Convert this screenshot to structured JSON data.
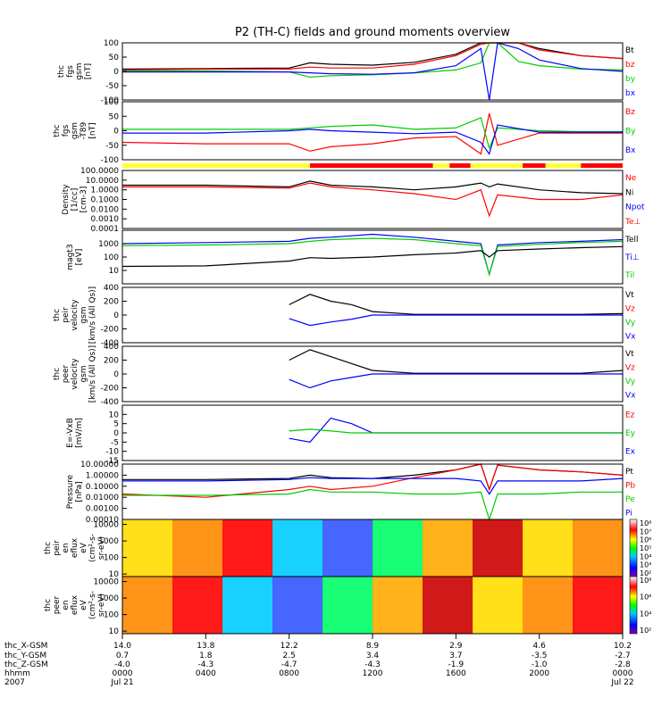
{
  "title": "P2 (TH-C) fields and ground moments overview",
  "chart_data": [
    {
      "type": "line",
      "ylabel": [
        "thc",
        "fgs",
        "gsm",
        "[nT]"
      ],
      "ylim": [
        -100,
        100
      ],
      "yticks": [
        "100",
        "50",
        "0",
        "-50",
        "-100"
      ],
      "legend": [
        {
          "name": "Bt",
          "color": "#000000"
        },
        {
          "name": "bz",
          "color": "#ff0000"
        },
        {
          "name": "by",
          "color": "#00cc00"
        },
        {
          "name": "bx",
          "color": "#0000ff"
        }
      ],
      "series": [
        {
          "name": "Bt",
          "x": [
            0,
            4,
            8,
            9,
            10,
            12,
            14,
            16,
            17.2,
            17.6,
            18,
            19,
            20,
            22,
            24
          ],
          "values": [
            8,
            10,
            12,
            30,
            25,
            22,
            32,
            60,
            100,
            100,
            100,
            100,
            80,
            55,
            45
          ]
        },
        {
          "name": "bz",
          "x": [
            0,
            4,
            8,
            9,
            10,
            12,
            14,
            16,
            17.2,
            17.6,
            18,
            19,
            20,
            22,
            24
          ],
          "values": [
            5,
            8,
            8,
            15,
            12,
            12,
            25,
            55,
            95,
            100,
            100,
            100,
            75,
            55,
            45
          ]
        },
        {
          "name": "by",
          "x": [
            0,
            4,
            8,
            9,
            10,
            12,
            14,
            16,
            17.2,
            17.6,
            18,
            19,
            20,
            22,
            24
          ],
          "values": [
            2,
            2,
            -2,
            -20,
            -15,
            -12,
            -5,
            5,
            30,
            100,
            100,
            35,
            20,
            8,
            5
          ]
        },
        {
          "name": "bx",
          "x": [
            0,
            4,
            8,
            9,
            10,
            12,
            14,
            16,
            17.2,
            17.6,
            18,
            19,
            20,
            22,
            24
          ],
          "values": [
            -2,
            -2,
            -2,
            -5,
            -8,
            -10,
            -5,
            20,
            80,
            -100,
            100,
            80,
            40,
            10,
            0
          ]
        }
      ]
    },
    {
      "type": "line",
      "ylabel": [
        "thc",
        "fgs",
        "gsm",
        "-T89",
        "[nT]"
      ],
      "ylim": [
        -100,
        100
      ],
      "yticks": [
        "100",
        "50",
        "0",
        "-50",
        "-100"
      ],
      "legend": [
        {
          "name": "Bz",
          "color": "#ff0000"
        },
        {
          "name": "By",
          "color": "#00cc00"
        },
        {
          "name": "Bx",
          "color": "#0000ff"
        }
      ],
      "series": [
        {
          "name": "Bz",
          "x": [
            0,
            4,
            8,
            9,
            10,
            12,
            14,
            16,
            17.2,
            17.6,
            18,
            20,
            22,
            24
          ],
          "values": [
            -40,
            -45,
            -45,
            -70,
            -55,
            -45,
            -25,
            -20,
            -80,
            60,
            -50,
            -8,
            -8,
            -8
          ]
        },
        {
          "name": "By",
          "x": [
            0,
            4,
            8,
            9,
            10,
            12,
            14,
            16,
            17.2,
            17.6,
            18,
            20,
            22,
            24
          ],
          "values": [
            5,
            5,
            5,
            10,
            15,
            20,
            5,
            10,
            45,
            -60,
            10,
            0,
            -3,
            -3
          ]
        },
        {
          "name": "Bx",
          "x": [
            0,
            4,
            8,
            9,
            10,
            12,
            14,
            16,
            17.2,
            17.6,
            18,
            20,
            22,
            24
          ],
          "values": [
            -8,
            -8,
            0,
            5,
            0,
            -5,
            -10,
            -5,
            -40,
            -80,
            20,
            -5,
            -5,
            -5
          ]
        }
      ]
    },
    {
      "type": "line",
      "ylabel": [
        "Density",
        "[1/cc]",
        "[cm-3]"
      ],
      "yscale": "log",
      "ylim": [
        0.0001,
        100
      ],
      "yticks": [
        "100.0000",
        "10.0000",
        "1.0000",
        "0.1000",
        "0.0100",
        "0.0010",
        "0.0001"
      ],
      "legend": [
        {
          "name": "Ne",
          "color": "#ff0000"
        },
        {
          "name": "Ni",
          "color": "#000000"
        },
        {
          "name": "Npot",
          "color": "#0000ff"
        },
        {
          "name": "Te⊥",
          "color": "#ff0000"
        }
      ],
      "series": [
        {
          "name": "Ni",
          "x": [
            0,
            4,
            8,
            9,
            10,
            12,
            14,
            16,
            17.2,
            17.6,
            18,
            20,
            22,
            24
          ],
          "values": [
            3,
            3,
            2,
            8,
            3,
            2,
            1,
            2,
            5,
            2,
            4,
            1,
            0.5,
            0.4
          ]
        },
        {
          "name": "Ne",
          "x": [
            0,
            4,
            8,
            9,
            10,
            12,
            14,
            16,
            17.2,
            17.6,
            18,
            20,
            22,
            24
          ],
          "values": [
            2,
            2,
            1.5,
            5,
            2,
            1,
            0.4,
            0.1,
            1,
            0.002,
            0.3,
            0.1,
            0.1,
            0.3
          ]
        }
      ]
    },
    {
      "type": "line",
      "ylabel": [
        "magt3",
        "[eV]"
      ],
      "yscale": "log",
      "ylim": [
        1,
        10000
      ],
      "yticks": [
        "1000",
        "100",
        "10"
      ],
      "legend": [
        {
          "name": "Tell",
          "color": "#000000"
        },
        {
          "name": "Ti⊥",
          "color": "#0000ff"
        },
        {
          "name": "Til",
          "color": "#00cc00"
        }
      ],
      "series": [
        {
          "name": "Ti⊥",
          "x": [
            0,
            4,
            8,
            9,
            10,
            12,
            14,
            16,
            17.2,
            17.6,
            18,
            20,
            22,
            24
          ],
          "values": [
            1000,
            1200,
            1500,
            2500,
            3000,
            5000,
            3000,
            1500,
            1000,
            5,
            800,
            1200,
            1500,
            2000
          ]
        },
        {
          "name": "Til",
          "x": [
            0,
            4,
            8,
            9,
            10,
            12,
            14,
            16,
            17.2,
            17.6,
            18,
            20,
            22,
            24
          ],
          "values": [
            700,
            800,
            1000,
            1500,
            2000,
            2500,
            2000,
            1000,
            700,
            5,
            600,
            900,
            1200,
            1500
          ]
        },
        {
          "name": "Tell",
          "x": [
            0,
            4,
            8,
            9,
            10,
            12,
            14,
            16,
            17.2,
            17.6,
            18,
            20,
            22,
            24
          ],
          "values": [
            20,
            22,
            50,
            90,
            80,
            100,
            150,
            200,
            300,
            100,
            300,
            400,
            500,
            600
          ]
        }
      ]
    },
    {
      "type": "line",
      "ylabel": [
        "thc",
        "peir",
        "velocity",
        "gsm",
        "[km/s (All Qs)]"
      ],
      "ylim": [
        -400,
        400
      ],
      "yticks": [
        "400",
        "200",
        "0",
        "-200",
        "-400"
      ],
      "legend": [
        {
          "name": "Vt",
          "color": "#000000"
        },
        {
          "name": "Vz",
          "color": "#ff0000"
        },
        {
          "name": "Vy",
          "color": "#00cc00"
        },
        {
          "name": "Vx",
          "color": "#0000ff"
        }
      ],
      "series": [
        {
          "name": "Vt",
          "x": [
            8,
            9,
            10,
            11,
            12,
            14,
            16,
            20,
            22,
            24
          ],
          "values": [
            150,
            300,
            200,
            150,
            50,
            10,
            10,
            10,
            10,
            20
          ]
        },
        {
          "name": "Vx",
          "x": [
            8,
            9,
            10,
            11,
            12,
            14,
            16,
            20,
            22,
            24
          ],
          "values": [
            -50,
            -150,
            -100,
            -60,
            0,
            0,
            0,
            0,
            0,
            0
          ]
        }
      ]
    },
    {
      "type": "line",
      "ylabel": [
        "thc",
        "peer",
        "velocity",
        "gsm",
        "[km/s (All Qs)]"
      ],
      "ylim": [
        -400,
        400
      ],
      "yticks": [
        "400",
        "200",
        "0",
        "-200",
        "-400"
      ],
      "legend": [
        {
          "name": "Vt",
          "color": "#000000"
        },
        {
          "name": "Vz",
          "color": "#ff0000"
        },
        {
          "name": "Vy",
          "color": "#00cc00"
        },
        {
          "name": "Vx",
          "color": "#0000ff"
        }
      ],
      "series": [
        {
          "name": "Vt",
          "x": [
            8,
            9,
            10,
            11,
            12,
            14,
            16,
            20,
            22,
            24
          ],
          "values": [
            200,
            350,
            250,
            150,
            50,
            10,
            10,
            10,
            10,
            50
          ]
        },
        {
          "name": "Vx",
          "x": [
            8,
            9,
            10,
            11,
            12,
            14,
            16,
            20,
            22,
            24
          ],
          "values": [
            -80,
            -200,
            -100,
            -50,
            0,
            0,
            0,
            0,
            0,
            0
          ]
        }
      ]
    },
    {
      "type": "line",
      "ylabel": [
        "E=-VxB",
        "[mV/m]"
      ],
      "ylim": [
        -15,
        15
      ],
      "yticks": [
        "10",
        "5",
        "0",
        "-5",
        "-10",
        "-15"
      ],
      "legend": [
        {
          "name": "Ez",
          "color": "#ff0000"
        },
        {
          "name": "Ey",
          "color": "#00cc00"
        },
        {
          "name": "Ex",
          "color": "#0000ff"
        }
      ],
      "series": [
        {
          "name": "Ex",
          "x": [
            8,
            9,
            10,
            11,
            12,
            14,
            16,
            20,
            22,
            24
          ],
          "values": [
            -3,
            -5,
            8,
            5,
            0,
            0,
            0,
            0,
            0,
            0
          ]
        },
        {
          "name": "Ey",
          "x": [
            8,
            9,
            10,
            11,
            12,
            14,
            16,
            20,
            22,
            24
          ],
          "values": [
            1,
            2,
            1,
            0,
            0,
            0,
            0,
            0,
            0,
            0
          ]
        }
      ]
    },
    {
      "type": "line",
      "ylabel": [
        "Pressure",
        "[nPa]"
      ],
      "yscale": "log",
      "ylim": [
        0.0001,
        10
      ],
      "yticks": [
        "10.00000",
        "1.00000",
        "0.10000",
        "0.01000",
        "0.00100",
        "0.00010"
      ],
      "legend": [
        {
          "name": "Pt",
          "color": "#000000"
        },
        {
          "name": "Pb",
          "color": "#ff0000"
        },
        {
          "name": "Pe",
          "color": "#00cc00"
        },
        {
          "name": "Pi",
          "color": "#0000ff"
        }
      ],
      "series": [
        {
          "name": "Pt",
          "x": [
            0,
            4,
            8,
            9,
            10,
            12,
            14,
            16,
            17.2,
            17.6,
            18,
            20,
            22,
            24
          ],
          "values": [
            0.4,
            0.4,
            0.5,
            1,
            0.6,
            0.5,
            1,
            3,
            10,
            0.05,
            8,
            3,
            2,
            1
          ]
        },
        {
          "name": "Pb",
          "x": [
            0,
            4,
            8,
            9,
            10,
            12,
            14,
            16,
            17.2,
            17.6,
            18,
            20,
            22,
            24
          ],
          "values": [
            0.02,
            0.01,
            0.05,
            0.1,
            0.05,
            0.1,
            0.6,
            3,
            10,
            0.05,
            8,
            3,
            2,
            1
          ]
        },
        {
          "name": "Pe",
          "x": [
            0,
            4,
            8,
            9,
            10,
            12,
            14,
            16,
            17.2,
            17.6,
            18,
            20,
            22,
            24
          ],
          "values": [
            0.015,
            0.015,
            0.02,
            0.05,
            0.03,
            0.03,
            0.02,
            0.02,
            0.03,
            0.0001,
            0.02,
            0.02,
            0.03,
            0.03
          ]
        },
        {
          "name": "Pi",
          "x": [
            0,
            4,
            8,
            9,
            10,
            12,
            14,
            16,
            17.2,
            17.6,
            18,
            20,
            22,
            24
          ],
          "values": [
            0.3,
            0.3,
            0.4,
            0.6,
            0.5,
            0.5,
            0.5,
            0.5,
            0.3,
            0.02,
            0.3,
            0.3,
            0.3,
            0.5
          ]
        }
      ]
    },
    {
      "type": "heatmap",
      "ylabel": [
        "thc",
        "peir",
        "en",
        "eflux",
        "eV",
        "(cm²-s-",
        "sr-eV)"
      ],
      "yscale": "log",
      "ylim": [
        7,
        20000
      ],
      "yticks": [
        "10000",
        "1000",
        "100",
        "10"
      ],
      "colorbar_ticks": [
        "10⁸",
        "10⁷",
        "10⁶",
        "10⁵",
        "10⁴",
        "10³",
        "10²"
      ]
    },
    {
      "type": "heatmap",
      "ylabel": [
        "thc",
        "peer",
        "en",
        "eflux",
        "eV",
        "(cm²-s-",
        "sr-eV)"
      ],
      "yscale": "log",
      "ylim": [
        7,
        20000
      ],
      "yticks": [
        "10000",
        "1000",
        "100",
        "10"
      ],
      "colorbar_ticks": [
        "10⁸",
        "10⁶",
        "10⁴",
        "10²"
      ]
    }
  ],
  "mode_bar": [
    {
      "from": 0,
      "to": 9,
      "color": "#ffff33"
    },
    {
      "from": 9,
      "to": 14.9,
      "color": "#ff0000"
    },
    {
      "from": 14.9,
      "to": 15.7,
      "color": "#ffff33"
    },
    {
      "from": 15.7,
      "to": 16.7,
      "color": "#ff0000"
    },
    {
      "from": 16.7,
      "to": 19.2,
      "color": "#ffff33"
    },
    {
      "from": 19.2,
      "to": 20.3,
      "color": "#ff0000"
    },
    {
      "from": 20.3,
      "to": 22,
      "color": "#ffff33"
    },
    {
      "from": 22,
      "to": 24,
      "color": "#ff0000"
    }
  ],
  "xaxis": {
    "labels": [
      "thc_X-GSM",
      "thc_Y-GSM",
      "thc_Z-GSM",
      "hhmm",
      "2007"
    ],
    "columns": [
      [
        "14.0",
        "0.7",
        "-4.0",
        "0000",
        "Jul 21"
      ],
      [
        "13.8",
        "1.8",
        "-4.3",
        "0400",
        ""
      ],
      [
        "12.2",
        "2.5",
        "-4.7",
        "0800",
        ""
      ],
      [
        "8.9",
        "3.4",
        "-4.3",
        "1200",
        ""
      ],
      [
        "2.9",
        "3.7",
        "-1.9",
        "1600",
        ""
      ],
      [
        "4.6",
        "-3.5",
        "-1.0",
        "2000",
        ""
      ],
      [
        "10.2",
        "-2.7",
        "-2.8",
        "0000",
        "Jul 22"
      ]
    ]
  }
}
